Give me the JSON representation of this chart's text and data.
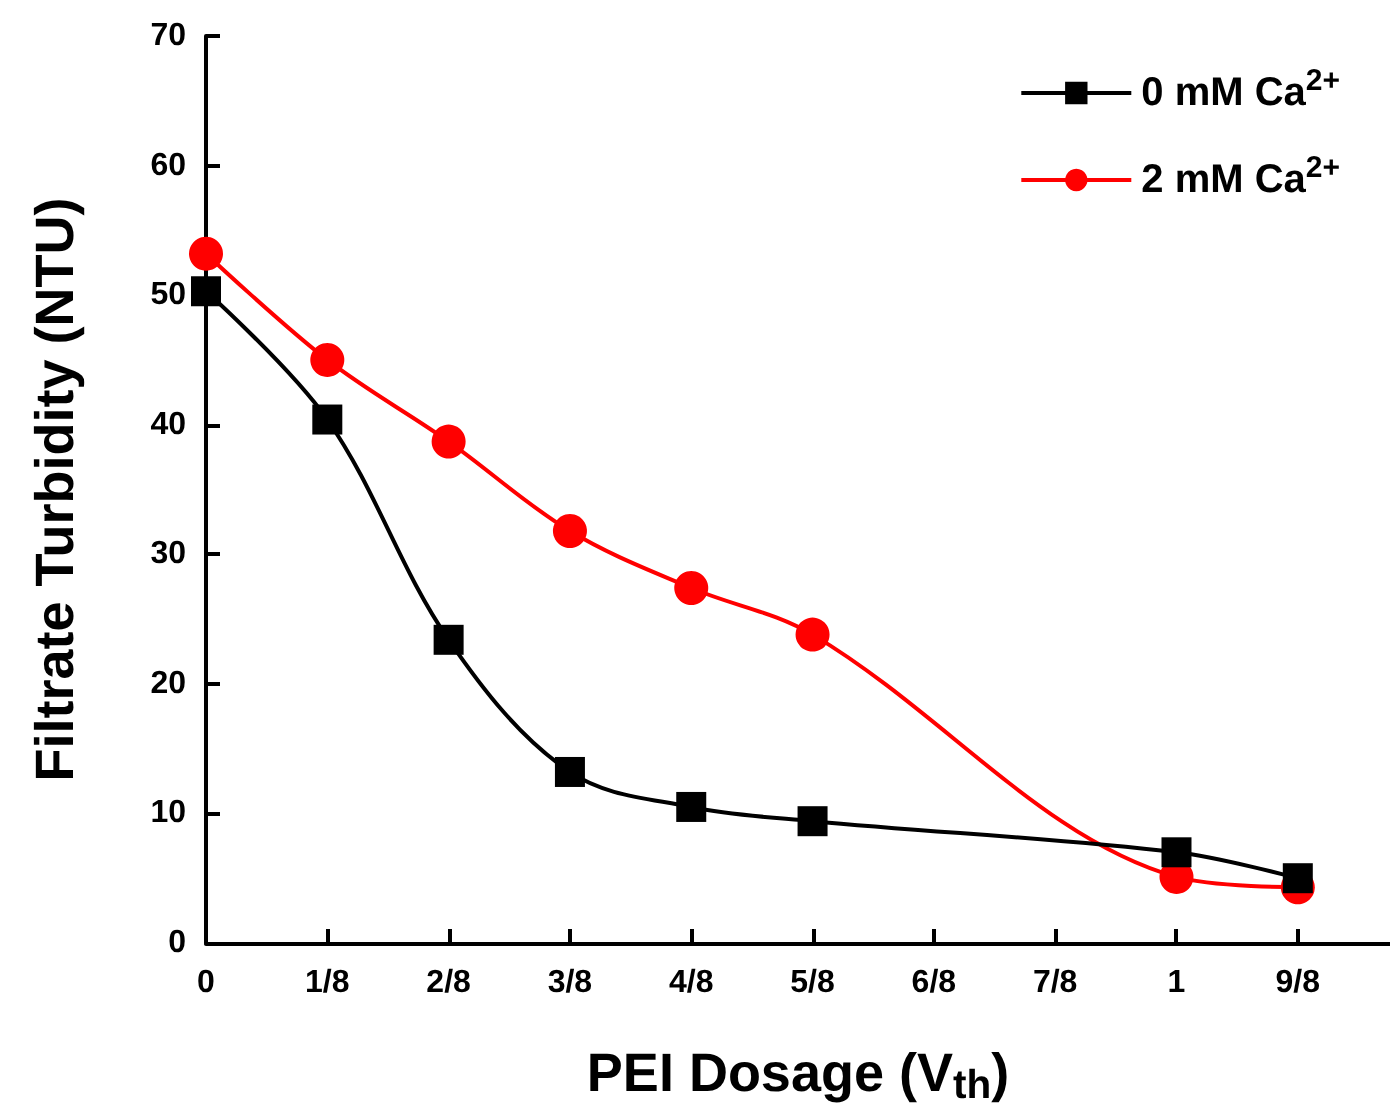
{
  "chart_data": {
    "type": "line",
    "xlabel": "PEI Dosage (V$_{th}$)",
    "ylabel": "Filtrate Turbidity (NTU)",
    "xlim": [
      0,
      1.22
    ],
    "ylim": [
      0,
      70
    ],
    "xticks": [
      0,
      {
        "value": 0.125,
        "label": "1/8"
      },
      {
        "value": 0.25,
        "label": "2/8"
      },
      {
        "value": 0.375,
        "label": "3/8"
      },
      {
        "value": 0.5,
        "label": "4/8"
      },
      {
        "value": 0.625,
        "label": "5/8"
      },
      {
        "value": 0.75,
        "label": "6/8"
      },
      {
        "value": 0.875,
        "label": "7/8"
      },
      1,
      {
        "value": 1.125,
        "label": "9/8"
      }
    ],
    "yticks": [
      0,
      10,
      20,
      30,
      40,
      50,
      60,
      70
    ],
    "x": [
      0,
      0.125,
      0.25,
      0.375,
      0.5,
      0.625,
      1,
      1.125
    ],
    "series": [
      {
        "name": "0 mM Ca$^{2+}$",
        "color": "#000000",
        "marker": "square",
        "values": [
          50.3,
          40.4,
          23.4,
          13.2,
          10.5,
          9.4,
          7.0,
          5.0
        ]
      },
      {
        "name": "2 mM Ca$^{2+}$",
        "color": "#ff0000",
        "marker": "circle",
        "values": [
          53.2,
          45.0,
          38.7,
          31.8,
          27.4,
          23.8,
          5.1,
          4.3
        ]
      }
    ],
    "legend": "top right",
    "grid": false,
    "line_style": "solid"
  }
}
